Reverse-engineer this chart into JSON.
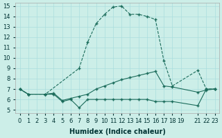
{
  "xlabel": "Humidex (Indice chaleur)",
  "ylabel": "",
  "bg_color": "#cceee8",
  "grid_color": "#aadddd",
  "line_color": "#1a6b5a",
  "xlim": [
    -0.5,
    23.5
  ],
  "ylim": [
    5,
    15
  ],
  "yticks": [
    5,
    6,
    7,
    8,
    9,
    10,
    11,
    12,
    13,
    14,
    15
  ],
  "xticks": [
    0,
    1,
    2,
    3,
    4,
    5,
    6,
    7,
    8,
    9,
    10,
    11,
    12,
    13,
    14,
    15,
    16,
    17,
    18,
    19,
    21,
    22,
    23
  ],
  "lines": [
    {
      "x": [
        0,
        1,
        3,
        4,
        5,
        6,
        7,
        8,
        9,
        10,
        11,
        12,
        13,
        14,
        15,
        16,
        17,
        18,
        21,
        22,
        23
      ],
      "y": [
        7,
        6.5,
        6.5,
        6.5,
        5.8,
        6.0,
        5.2,
        6.0,
        6.0,
        6.0,
        6.0,
        6.0,
        6.0,
        6.0,
        6.0,
        5.8,
        5.8,
        5.8,
        5.4,
        7.0,
        7.0
      ],
      "style": "-",
      "marker": "+"
    },
    {
      "x": [
        0,
        1,
        3,
        4,
        5,
        6,
        7,
        8,
        9,
        10,
        11,
        12,
        13,
        14,
        15,
        16,
        17,
        18,
        21,
        22,
        23
      ],
      "y": [
        7,
        6.5,
        6.5,
        6.6,
        5.9,
        6.1,
        6.3,
        6.5,
        7.0,
        7.3,
        7.6,
        7.9,
        8.1,
        8.3,
        8.5,
        8.7,
        7.3,
        7.2,
        6.7,
        6.9,
        7.0
      ],
      "style": "-",
      "marker": "+"
    },
    {
      "x": [
        0,
        1,
        3,
        7,
        8,
        9,
        10,
        11,
        12,
        13,
        14,
        15,
        16,
        17,
        18,
        21,
        22,
        23
      ],
      "y": [
        7.0,
        6.5,
        6.5,
        9.0,
        11.5,
        13.3,
        14.2,
        14.9,
        15.0,
        14.2,
        14.2,
        14.0,
        13.7,
        9.7,
        7.3,
        8.8,
        7.0,
        7.0
      ],
      "style": "--",
      "marker": "+"
    }
  ]
}
